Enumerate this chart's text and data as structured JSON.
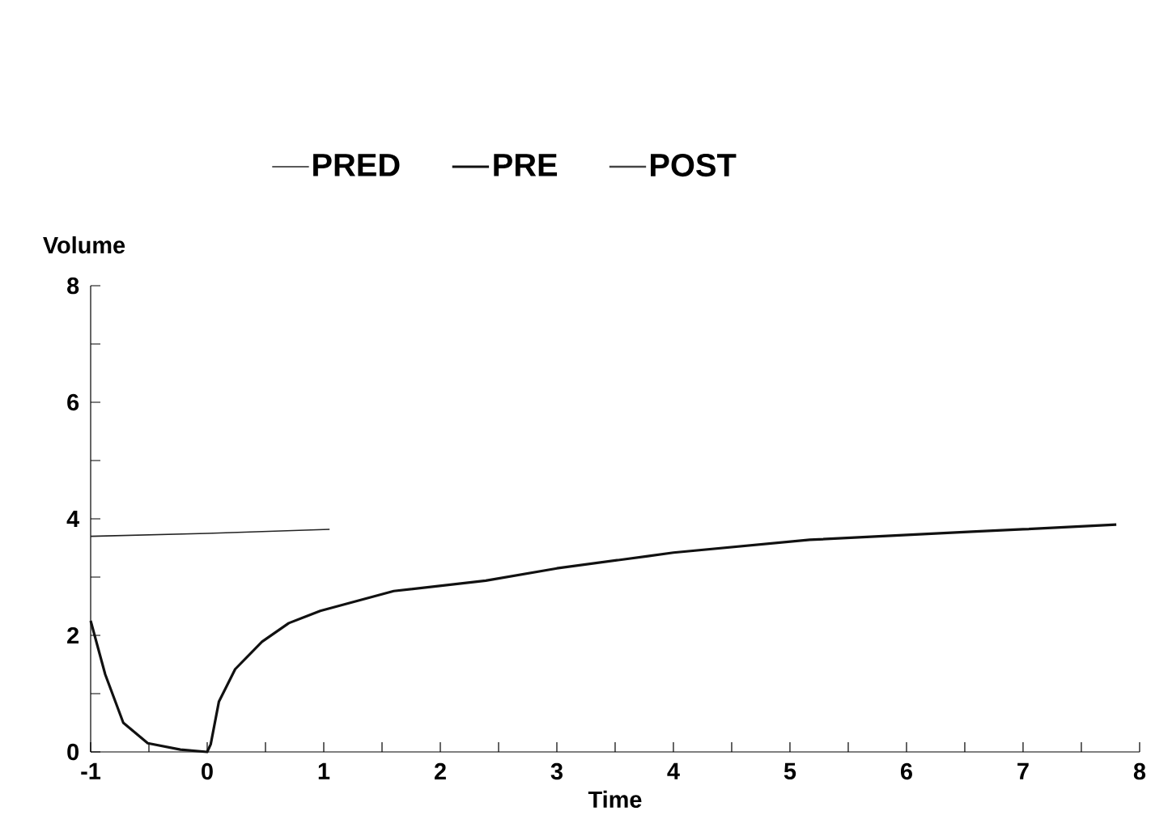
{
  "chart_data": {
    "type": "line",
    "xlabel": "Time",
    "ylabel": "Volume",
    "legend": "top",
    "xlim": [
      -1,
      8
    ],
    "ylim": [
      0,
      8
    ],
    "xticks": [
      -1,
      {
        "value": -0.5,
        "label": null
      },
      0,
      {
        "value": 0.5,
        "label": null
      },
      1,
      {
        "value": 1.5,
        "label": null
      },
      2,
      {
        "value": 2.5,
        "label": null
      },
      3,
      {
        "value": 3.5,
        "label": null
      },
      4,
      {
        "value": 4.5,
        "label": null
      },
      5,
      {
        "value": 5.5,
        "label": null
      },
      6,
      {
        "value": 6.5,
        "label": null
      },
      7,
      {
        "value": 7.5,
        "label": null
      },
      8
    ],
    "yticks": [
      0,
      {
        "value": 1,
        "label": null
      },
      2,
      {
        "value": 3,
        "label": null
      },
      4,
      {
        "value": 5,
        "label": null
      },
      6,
      {
        "value": 7,
        "label": null
      },
      8
    ],
    "series": [
      {
        "name": "PRED",
        "color": "#222222",
        "x": [
          -1,
          0,
          1.05
        ],
        "values": [
          3.7,
          3.75,
          3.82
        ]
      },
      {
        "name": "PRE",
        "color": "#111111",
        "x": [
          -1,
          -0.875,
          -0.72,
          -0.51,
          -0.23,
          0,
          0.03,
          0.1,
          0.24,
          0.47,
          0.7,
          0.97,
          1.6,
          2.39,
          3.0,
          3.78,
          4.0,
          5.17,
          6.56,
          7.0,
          7.8
        ],
        "values": [
          2.25,
          1.33,
          0.5,
          0.15,
          0.04,
          0,
          0.13,
          0.86,
          1.42,
          1.89,
          2.21,
          2.42,
          2.76,
          2.94,
          3.15,
          3.36,
          3.42,
          3.64,
          3.78,
          3.82,
          3.9
        ]
      },
      {
        "name": "POST",
        "color": "#444444"
      }
    ]
  }
}
